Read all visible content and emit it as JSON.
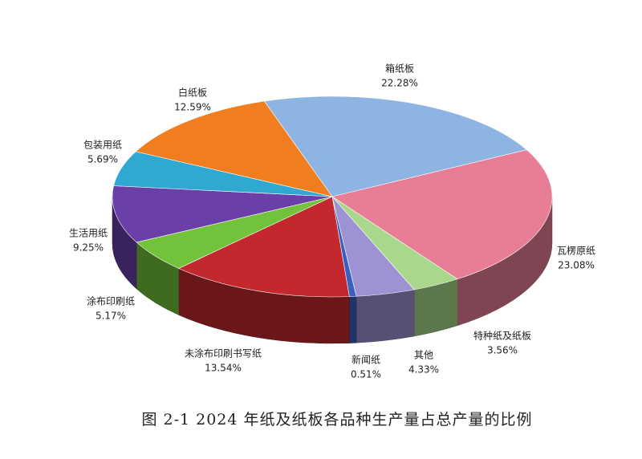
{
  "chart_data": {
    "type": "pie3d",
    "caption": "图 2-1   2024 年纸及纸板各品种生产量占总产量的比例",
    "categories": [
      "箱纸板",
      "瓦楞原纸",
      "特种纸及纸板",
      "其他",
      "新闻纸",
      "未涂布印刷书写纸",
      "涂布印刷纸",
      "生活用纸",
      "包装用纸",
      "白纸板"
    ],
    "values": [
      22.28,
      23.08,
      3.56,
      4.33,
      0.51,
      13.54,
      5.17,
      9.25,
      5.69,
      12.59
    ],
    "value_labels": [
      "22.28%",
      "23.08%",
      "3.56%",
      "4.33%",
      "0.51%",
      "13.54%",
      "5.17%",
      "9.25%",
      "5.69%",
      "12.59%"
    ],
    "colors": [
      "#8db4e2",
      "#e87e96",
      "#a9d88c",
      "#9d92d2",
      "#3a5fc0",
      "#c2282e",
      "#72c23c",
      "#6a3fa8",
      "#30a9d2",
      "#f07e20"
    ]
  }
}
